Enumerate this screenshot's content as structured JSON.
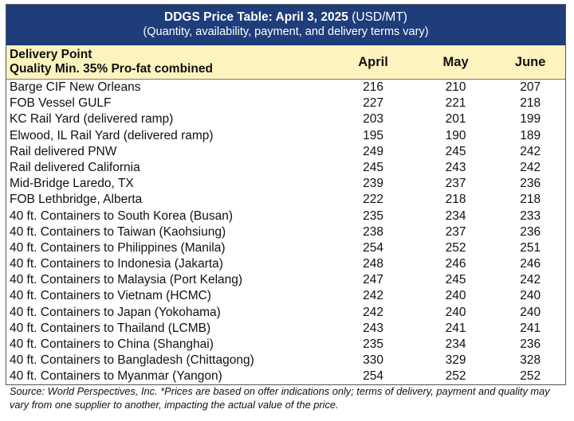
{
  "title": {
    "bold": "DDGS Price Table: April 3, 2025",
    "suffix": " (USD/MT)",
    "subtitle": "(Quantity, availability, payment, and delivery terms vary)"
  },
  "header": {
    "label_line1": "Delivery Point",
    "label_line2": "Quality Min. 35% Pro-fat combined",
    "columns": [
      "April",
      "May",
      "June"
    ]
  },
  "rows": [
    {
      "label": "Barge CIF New Orleans",
      "april": "216",
      "may": "210",
      "june": "207"
    },
    {
      "label": "FOB Vessel GULF",
      "april": "227",
      "may": "221",
      "june": "218"
    },
    {
      "label": "KC Rail Yard (delivered ramp)",
      "april": "203",
      "may": "201",
      "june": "199"
    },
    {
      "label": "Elwood, IL Rail Yard (delivered ramp)",
      "april": "195",
      "may": "190",
      "june": "189"
    },
    {
      "label": "Rail delivered PNW",
      "april": "249",
      "may": "245",
      "june": "242"
    },
    {
      "label": "Rail delivered California",
      "april": "245",
      "may": "243",
      "june": "242"
    },
    {
      "label": "Mid-Bridge Laredo, TX",
      "april": "239",
      "may": "237",
      "june": "236"
    },
    {
      "label": "FOB Lethbridge, Alberta",
      "april": "222",
      "may": "218",
      "june": "218"
    },
    {
      "label": "40 ft. Containers to South Korea (Busan)",
      "april": "235",
      "may": "234",
      "june": "233"
    },
    {
      "label": "40 ft. Containers to Taiwan (Kaohsiung)",
      "april": "238",
      "may": "237",
      "june": "236"
    },
    {
      "label": "40 ft. Containers to Philippines (Manila)",
      "april": "254",
      "may": "252",
      "june": "251"
    },
    {
      "label": "40 ft. Containers to Indonesia (Jakarta)",
      "april": "248",
      "may": "246",
      "june": "246"
    },
    {
      "label": "40 ft. Containers to Malaysia (Port Kelang)",
      "april": "247",
      "may": "245",
      "june": "242"
    },
    {
      "label": "40 ft. Containers to Vietnam (HCMC)",
      "april": "242",
      "may": "240",
      "june": "240"
    },
    {
      "label": "40 ft. Containers to Japan (Yokohama)",
      "april": "242",
      "may": "240",
      "june": "240"
    },
    {
      "label": "40 ft. Containers to Thailand (LCMB)",
      "april": "243",
      "may": "241",
      "june": "241"
    },
    {
      "label": "40 ft. Containers to China (Shanghai)",
      "april": "235",
      "may": "234",
      "june": "236"
    },
    {
      "label": "40 ft. Containers to Bangladesh (Chittagong)",
      "april": "330",
      "may": "329",
      "june": "328"
    },
    {
      "label": "40 ft. Containers to Myanmar (Yangon)",
      "april": "254",
      "may": "252",
      "june": "252"
    }
  ],
  "source": "Source: World Perspectives, Inc. *Prices are based on offer indications only; terms of delivery, payment and quality may vary from one supplier to another, impacting the actual value of the price."
}
